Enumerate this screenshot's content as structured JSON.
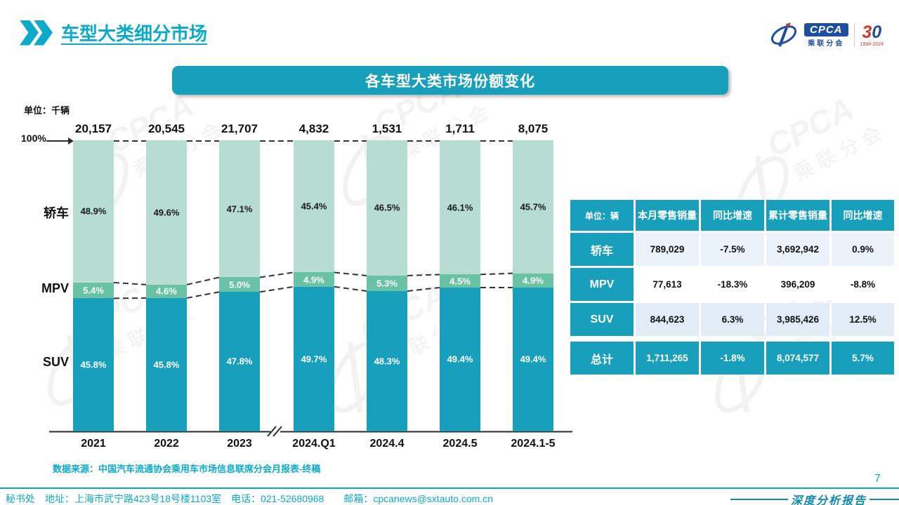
{
  "header": {
    "title": "车型大类细分市场"
  },
  "logo": {
    "cpca": "CPCA",
    "sub": "乘联分会",
    "anniversary_3": "3",
    "anniversary_0": "0",
    "years": "1994-2024"
  },
  "banner": {
    "title": "各车型大类市场份额变化"
  },
  "chart_data": {
    "type": "bar",
    "stacked": true,
    "title": "各车型大类市场份额变化",
    "unit_label": "单位：千辆",
    "axis_top_label": "100%",
    "ylim": [
      0,
      100
    ],
    "categories": [
      "2021",
      "2022",
      "2023",
      "2024.Q1",
      "2024.4",
      "2024.5",
      "2024.1-5"
    ],
    "totals": [
      "20,157",
      "20,545",
      "21,707",
      "4,832",
      "1,531",
      "1,711",
      "8,075"
    ],
    "series": [
      {
        "name": "轿车",
        "color": "#b7dcd2",
        "label_color": "#1a1a1a",
        "values": [
          48.9,
          49.6,
          47.1,
          45.4,
          46.5,
          46.1,
          45.7
        ]
      },
      {
        "name": "MPV",
        "color": "#6ac2a5",
        "label_color": "#ffffff",
        "values": [
          5.4,
          4.6,
          5.0,
          4.9,
          5.3,
          4.5,
          4.9
        ]
      },
      {
        "name": "SUV",
        "color": "#189fbc",
        "label_color": "#ffffff",
        "values": [
          45.8,
          45.8,
          47.8,
          49.7,
          48.3,
          49.4,
          49.4
        ]
      }
    ],
    "row_labels": {
      "sedan": "轿车",
      "mpv": "MPV",
      "suv": "SUV"
    },
    "axis_break_between": [
      "2023",
      "2024.Q1"
    ]
  },
  "table": {
    "headers": [
      "单位：辆",
      "本月零售销量",
      "同比增速",
      "累计零售销量",
      "同比增速"
    ],
    "rows": [
      {
        "label": "轿车",
        "values": [
          "789,029",
          "-7.5%",
          "3,692,942",
          "0.9%"
        ],
        "highlight": false
      },
      {
        "label": "MPV",
        "values": [
          "77,613",
          "-18.3%",
          "396,209",
          "-8.8%"
        ],
        "highlight": false
      },
      {
        "label": "SUV",
        "values": [
          "844,623",
          "6.3%",
          "3,985,426",
          "12.5%"
        ],
        "highlight": false
      },
      {
        "label": "总计",
        "values": [
          "1,711,265",
          "-1.8%",
          "8,074,577",
          "5.7%"
        ],
        "highlight": true
      }
    ]
  },
  "source": "数据来源：中国汽车流通协会乘用车市场信息联席分会月报表-终稿",
  "footer": {
    "text": "秘书处　地址：上海市武宁路423号18号楼1103室　电话：021-52680968　　邮箱：cpcanews@sxtauto.com.cn",
    "page": "7",
    "report_label": "深度分析报告"
  },
  "watermark": {
    "line1": "CPCA",
    "line2": "乘联分会"
  },
  "colors": {
    "teal": "#189fbc",
    "teal_bright": "#0ca9c9",
    "sedan_green": "#b7dcd2",
    "mpv_green": "#6ac2a5",
    "logo_blue": "#1d4f9e",
    "logo_red": "#d5352f",
    "row_bg_sedan": "#ecf2f9",
    "row_bg_mpv": "#ffffff",
    "row_bg_suv": "#e2ecf6"
  }
}
